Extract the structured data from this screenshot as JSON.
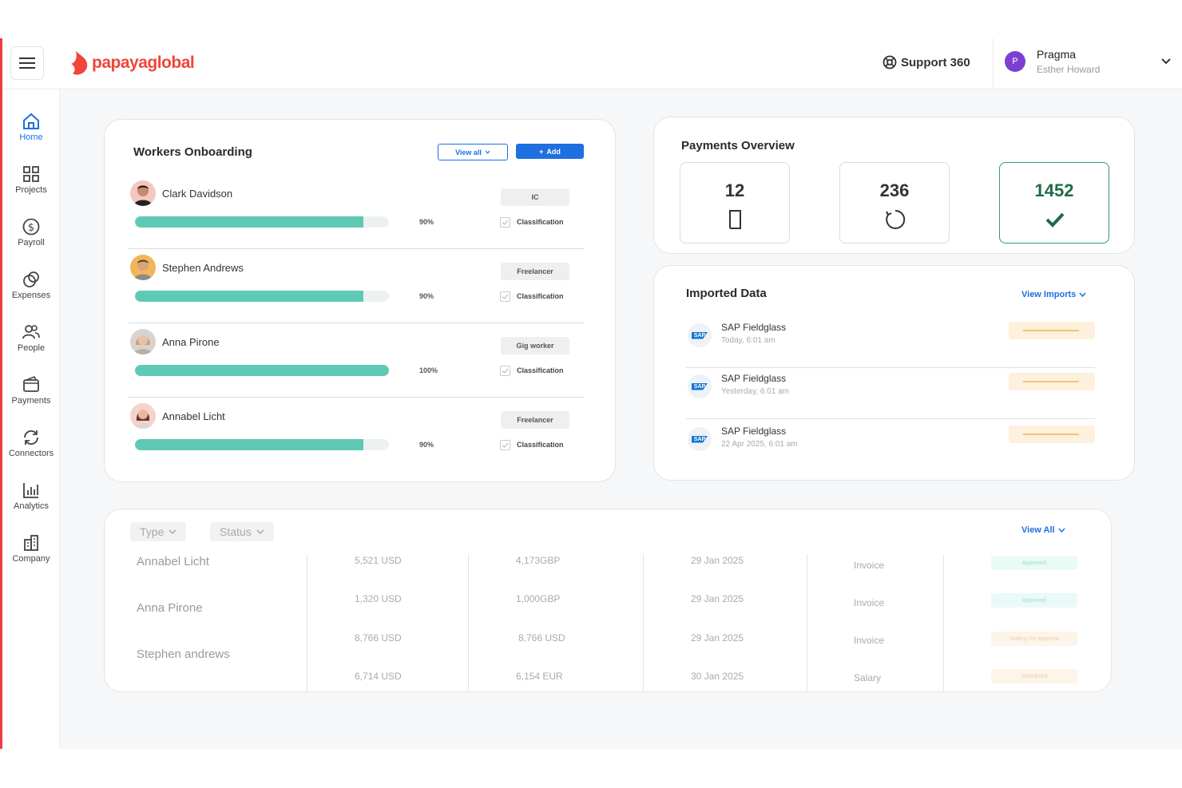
{
  "header": {
    "brand": "papayaglobal",
    "support_label": "Support 360",
    "account_name": "Pragma",
    "account_user": "Esther Howard",
    "avatar_initial": "P"
  },
  "sidebar": {
    "items": [
      {
        "label": "Home",
        "icon": "home-icon"
      },
      {
        "label": "Projects",
        "icon": "grid-icon"
      },
      {
        "label": "Payroll",
        "icon": "dollar-icon"
      },
      {
        "label": "Expenses",
        "icon": "coins-icon"
      },
      {
        "label": "People",
        "icon": "people-icon"
      },
      {
        "label": "Payments",
        "icon": "wallet-icon"
      },
      {
        "label": "Connectors",
        "icon": "sync-icon"
      },
      {
        "label": "Analytics",
        "icon": "chart-icon"
      },
      {
        "label": "Company",
        "icon": "building-icon"
      }
    ]
  },
  "onboarding": {
    "title": "Workers Onboarding",
    "view_all_label": "View all",
    "add_label": "Add",
    "workers": [
      {
        "name": "Clark Davidson",
        "type": "IC",
        "progress": 90,
        "progress_label": "90%",
        "check_label": "Classification"
      },
      {
        "name": "Stephen Andrews",
        "type": "Freelancer",
        "progress": 90,
        "progress_label": "90%",
        "check_label": "Classification"
      },
      {
        "name": "Anna Pirone",
        "type": "Gig worker",
        "progress": 100,
        "progress_label": "100%",
        "check_label": "Classification"
      },
      {
        "name": "Annabel Licht",
        "type": "Freelancer",
        "progress": 90,
        "progress_label": "90%",
        "check_label": "Classification"
      }
    ]
  },
  "payments_overview": {
    "title": "Payments Overview",
    "stats": [
      {
        "value": "12",
        "icon": "document-icon"
      },
      {
        "value": "236",
        "icon": "loading-icon"
      },
      {
        "value": "1452",
        "icon": "checkmark-icon"
      }
    ]
  },
  "imported_data": {
    "title": "Imported Data",
    "view_label": "View Imports",
    "items": [
      {
        "name": "SAP Fieldglass",
        "time": "Today, 6:01 am",
        "logo": "SAP"
      },
      {
        "name": "SAP Fieldglass",
        "time": "Yesterday, 6:01 am",
        "logo": "SAP"
      },
      {
        "name": "SAP Fieldglass",
        "time": "22 Apr 2025, 6:01 am",
        "logo": "SAP"
      }
    ]
  },
  "payments_table": {
    "filters": [
      "Type",
      "Status"
    ],
    "view_all_label": "View All",
    "names": [
      "Annabel Licht",
      "Anna Pirone",
      "Stephen andrews"
    ],
    "rows": [
      {
        "amount1": "5,521 USD",
        "amount2": "4,173GBP",
        "date": "29 Jan 2025",
        "kind": "Invoice",
        "status": "Approved"
      },
      {
        "amount1": "1,320 USD",
        "amount2": "1,000GBP",
        "date": "29 Jan 2025",
        "kind": "Invoice",
        "status": "Approved"
      },
      {
        "amount1": "8,766 USD",
        "amount2": "8,766 USD",
        "date": "29 Jan 2025",
        "kind": "Invoice",
        "status": "Waiting for approval"
      },
      {
        "amount1": "6,714 USD",
        "amount2": "6,154 EUR",
        "date": "30 Jan 2025",
        "kind": "Salary",
        "status": "Scheduled"
      }
    ]
  }
}
